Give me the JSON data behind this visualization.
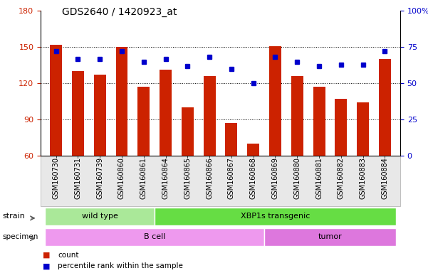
{
  "title": "GDS2640 / 1420923_at",
  "samples": [
    "GSM160730",
    "GSM160731",
    "GSM160739",
    "GSM160860",
    "GSM160861",
    "GSM160864",
    "GSM160865",
    "GSM160866",
    "GSM160867",
    "GSM160868",
    "GSM160869",
    "GSM160880",
    "GSM160881",
    "GSM160882",
    "GSM160883",
    "GSM160884"
  ],
  "counts": [
    152,
    130,
    127,
    150,
    117,
    131,
    100,
    126,
    87,
    70,
    151,
    126,
    117,
    107,
    104,
    140
  ],
  "percentiles": [
    72,
    67,
    67,
    72,
    65,
    67,
    62,
    68,
    60,
    50,
    68,
    65,
    62,
    63,
    63,
    72
  ],
  "ylim_left": [
    60,
    180
  ],
  "ylim_right": [
    0,
    100
  ],
  "yticks_left": [
    60,
    90,
    120,
    150,
    180
  ],
  "yticks_right": [
    0,
    25,
    50,
    75,
    100
  ],
  "yticklabels_right": [
    "0",
    "25",
    "50",
    "75",
    "100%"
  ],
  "bar_color": "#cc2200",
  "dot_color": "#0000cc",
  "background_color": "#ffffff",
  "plot_bg_color": "#ffffff",
  "strain_groups": [
    {
      "label": "wild type",
      "start": 0,
      "end": 5,
      "color": "#aae899"
    },
    {
      "label": "XBP1s transgenic",
      "start": 5,
      "end": 16,
      "color": "#66dd44"
    }
  ],
  "specimen_groups": [
    {
      "label": "B cell",
      "start": 0,
      "end": 10,
      "color": "#ee99ee"
    },
    {
      "label": "tumor",
      "start": 10,
      "end": 16,
      "color": "#dd77dd"
    }
  ],
  "legend_items": [
    {
      "label": "count",
      "color": "#cc2200"
    },
    {
      "label": "percentile rank within the sample",
      "color": "#0000cc"
    }
  ],
  "title_fontsize": 10,
  "tick_label_fontsize": 7,
  "axis_label_fontsize": 8
}
